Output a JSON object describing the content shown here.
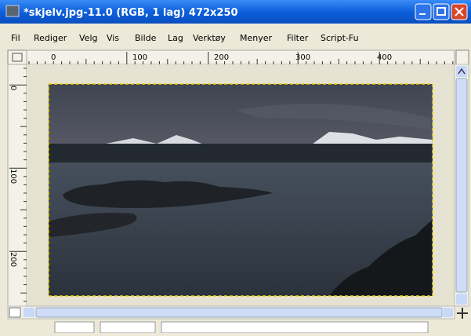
{
  "window": {
    "title": "*skjelv.jpg-11.0 (RGB, 1 lag) 472x250"
  },
  "menu": [
    "Fil",
    "Rediger",
    "Velg",
    "Vis",
    "Bilde",
    "Lag",
    "Verktøy",
    "Menyer",
    "Filter",
    "Script-Fu"
  ],
  "rulers": {
    "horizontal": [
      "0",
      "100",
      "200",
      "300",
      "400"
    ],
    "vertical": [
      "0",
      "100",
      "200"
    ]
  }
}
